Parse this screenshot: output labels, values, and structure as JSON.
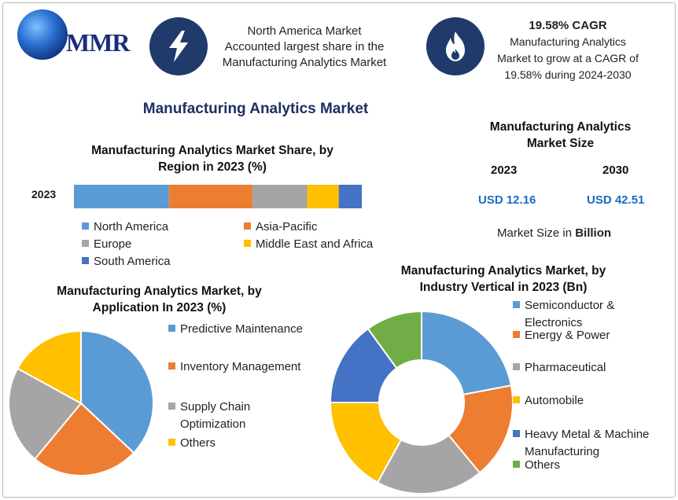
{
  "brand": {
    "logo_text": "MMR"
  },
  "highlights": [
    {
      "icon": "lightning-icon",
      "text_lines": [
        "North America Market",
        "Accounted largest share in the",
        "Manufacturing Analytics Market"
      ]
    },
    {
      "icon": "flame-icon",
      "title": "19.58% CAGR",
      "text_lines": [
        "Manufacturing Analytics",
        "Market to grow at a CAGR of",
        "19.58% during 2024-2030"
      ]
    }
  ],
  "main_title": "Manufacturing Analytics Market",
  "market_size": {
    "title_lines": [
      "Manufacturing Analytics",
      "Market Size"
    ],
    "year_1": "2023",
    "value_1": "USD 12.16",
    "year_2": "2030",
    "value_2": "USD 42.51",
    "unit_prefix": "Market Size in ",
    "unit_bold": "Billion"
  },
  "colors": {
    "blue": "#5b9bd5",
    "orange": "#ed7d31",
    "gray": "#a5a5a5",
    "yellow": "#ffc000",
    "dark_blue": "#4472c4",
    "green": "#70ad47",
    "navy": "#1f3a6b"
  },
  "chart_data": [
    {
      "type": "bar",
      "orientation": "horizontal-stacked",
      "title_lines": [
        "Manufacturing Analytics Market Share, by",
        "Region in 2023 (%)"
      ],
      "categories": [
        "2023"
      ],
      "series": [
        {
          "name": "North America",
          "values": [
            33
          ],
          "color": "#5b9bd5"
        },
        {
          "name": "Asia-Pacific",
          "values": [
            29
          ],
          "color": "#ed7d31"
        },
        {
          "name": "Europe",
          "values": [
            19
          ],
          "color": "#a5a5a5"
        },
        {
          "name": "Middle East and Africa",
          "values": [
            11
          ],
          "color": "#ffc000"
        },
        {
          "name": "South America",
          "values": [
            8
          ],
          "color": "#4472c4"
        }
      ],
      "legend": "bottom"
    },
    {
      "type": "pie",
      "title_lines": [
        "Manufacturing Analytics Market, by",
        "Application In 2023 (%)"
      ],
      "slices": [
        {
          "name": "Predictive Maintenance",
          "value": 37,
          "color": "#5b9bd5"
        },
        {
          "name": "Inventory Management",
          "value": 24,
          "color": "#ed7d31"
        },
        {
          "name": "Supply Chain Optimization",
          "name_lines": [
            "Supply Chain",
            "Optimization"
          ],
          "value": 22,
          "color": "#a5a5a5"
        },
        {
          "name": "Others",
          "value": 17,
          "color": "#ffc000"
        }
      ],
      "legend": "right"
    },
    {
      "type": "pie",
      "variant": "donut",
      "title_lines": [
        "Manufacturing Analytics Market, by",
        "Industry Vertical in 2023 (Bn)"
      ],
      "slices": [
        {
          "name": "Semiconductor & Electronics",
          "name_lines": [
            "Semiconductor &",
            "Electronics"
          ],
          "value": 22,
          "color": "#5b9bd5"
        },
        {
          "name": "Energy & Power",
          "value": 17,
          "color": "#ed7d31"
        },
        {
          "name": "Pharmaceutical",
          "value": 19,
          "color": "#a5a5a5"
        },
        {
          "name": "Automobile",
          "value": 17,
          "color": "#ffc000"
        },
        {
          "name": "Heavy Metal & Machine Manufacturing",
          "name_lines": [
            "Heavy Metal & Machine",
            "Manufacturing"
          ],
          "value": 15,
          "color": "#4472c4"
        },
        {
          "name": "Others",
          "value": 10,
          "color": "#70ad47"
        }
      ],
      "legend": "right"
    }
  ]
}
